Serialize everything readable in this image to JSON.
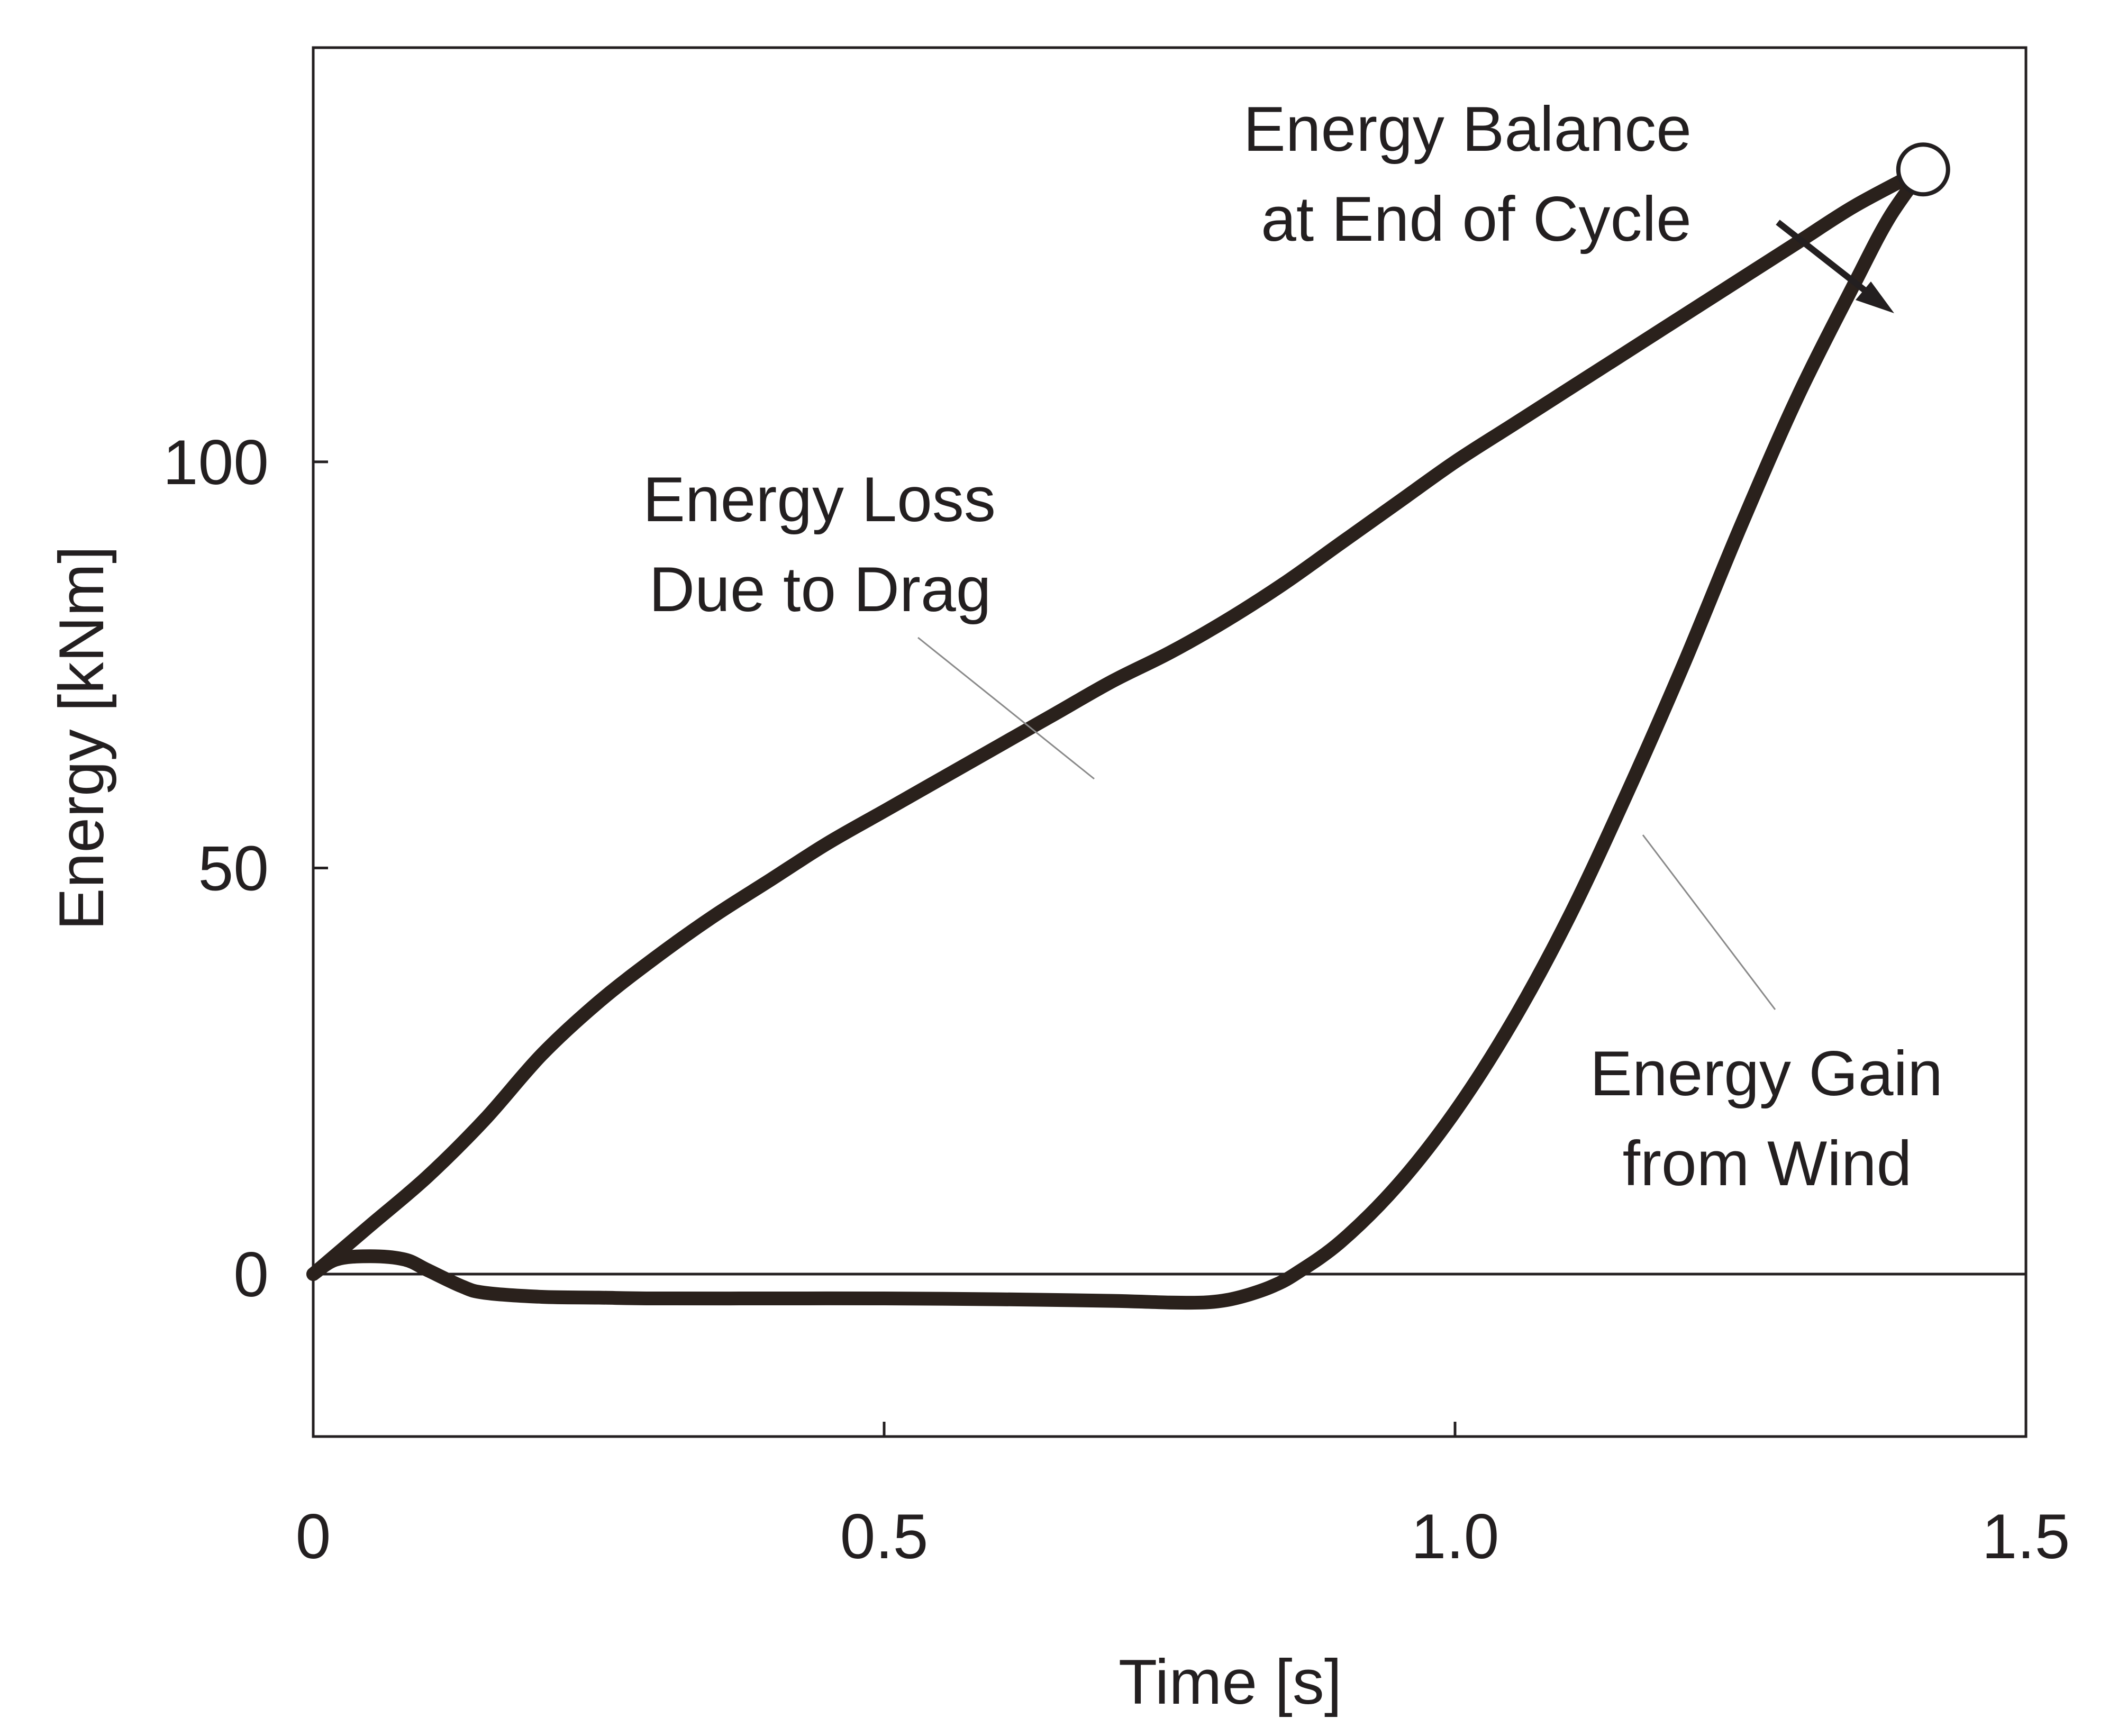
{
  "chart_data": {
    "type": "line",
    "title": "",
    "xlabel": "Time [s]",
    "ylabel": "Energy [kNm]",
    "xlim": [
      0,
      1.5
    ],
    "ylim": [
      -20,
      151
    ],
    "xticks": [
      {
        "value": 0,
        "label": "0"
      },
      {
        "value": 0.5,
        "label": "0.5"
      },
      {
        "value": 1.0,
        "label": "1.0"
      },
      {
        "value": 1.5,
        "label": "1.5"
      }
    ],
    "yticks": [
      {
        "value": 0,
        "label": "0"
      },
      {
        "value": 50,
        "label": "50"
      },
      {
        "value": 100,
        "label": "100"
      }
    ],
    "reference_line_y": 0,
    "grid": false,
    "legend": "none",
    "series": [
      {
        "name": "Energy Loss Due to Drag",
        "x": [
          0,
          0.05,
          0.1,
          0.15,
          0.2,
          0.25,
          0.3,
          0.35,
          0.4,
          0.45,
          0.5,
          0.55,
          0.6,
          0.65,
          0.7,
          0.75,
          0.8,
          0.85,
          0.9,
          0.95,
          1.0,
          1.05,
          1.1,
          1.15,
          1.2,
          1.25,
          1.3,
          1.35,
          1.41
        ],
        "y": [
          0,
          6,
          12,
          19,
          27,
          33.5,
          39,
          44,
          48.5,
          53,
          57,
          61,
          65,
          69,
          73,
          76.5,
          80.5,
          85,
          90,
          95,
          100,
          104.5,
          109,
          113.5,
          118,
          122.5,
          127,
          131.5,
          136
        ]
      },
      {
        "name": "Energy Gain from Wind",
        "x": [
          0,
          0.02,
          0.05,
          0.08,
          0.1,
          0.13,
          0.15,
          0.2,
          0.25,
          0.3,
          0.4,
          0.5,
          0.6,
          0.7,
          0.75,
          0.78,
          0.8,
          0.82,
          0.84,
          0.86,
          0.9,
          0.95,
          1.0,
          1.05,
          1.1,
          1.15,
          1.2,
          1.25,
          1.3,
          1.35,
          1.38,
          1.41
        ],
        "y": [
          0,
          1.8,
          2.2,
          1.8,
          0.5,
          -1.5,
          -2.3,
          -2.8,
          -2.9,
          -3,
          -3,
          -3,
          -3.1,
          -3.3,
          -3.5,
          -3.5,
          -3.2,
          -2.5,
          -1.5,
          0,
          4,
          11,
          20,
          31,
          44,
          59,
          75,
          92,
          108,
          122,
          130,
          136
        ]
      }
    ],
    "end_point": {
      "x": 1.41,
      "y": 136
    },
    "annotations": [
      {
        "name": "energy-balance",
        "lines": [
          "Energy Balance",
          "at End of Cycle"
        ]
      },
      {
        "name": "energy-loss",
        "lines": [
          "Energy Loss",
          "Due to Drag"
        ]
      },
      {
        "name": "energy-gain",
        "lines": [
          "Energy Gain",
          "from Wind"
        ]
      }
    ]
  },
  "colors": {
    "curve": "#2a211c",
    "axis": "#231f20",
    "leader": "#8a8a8a",
    "marker_fill": "#ffffff"
  }
}
